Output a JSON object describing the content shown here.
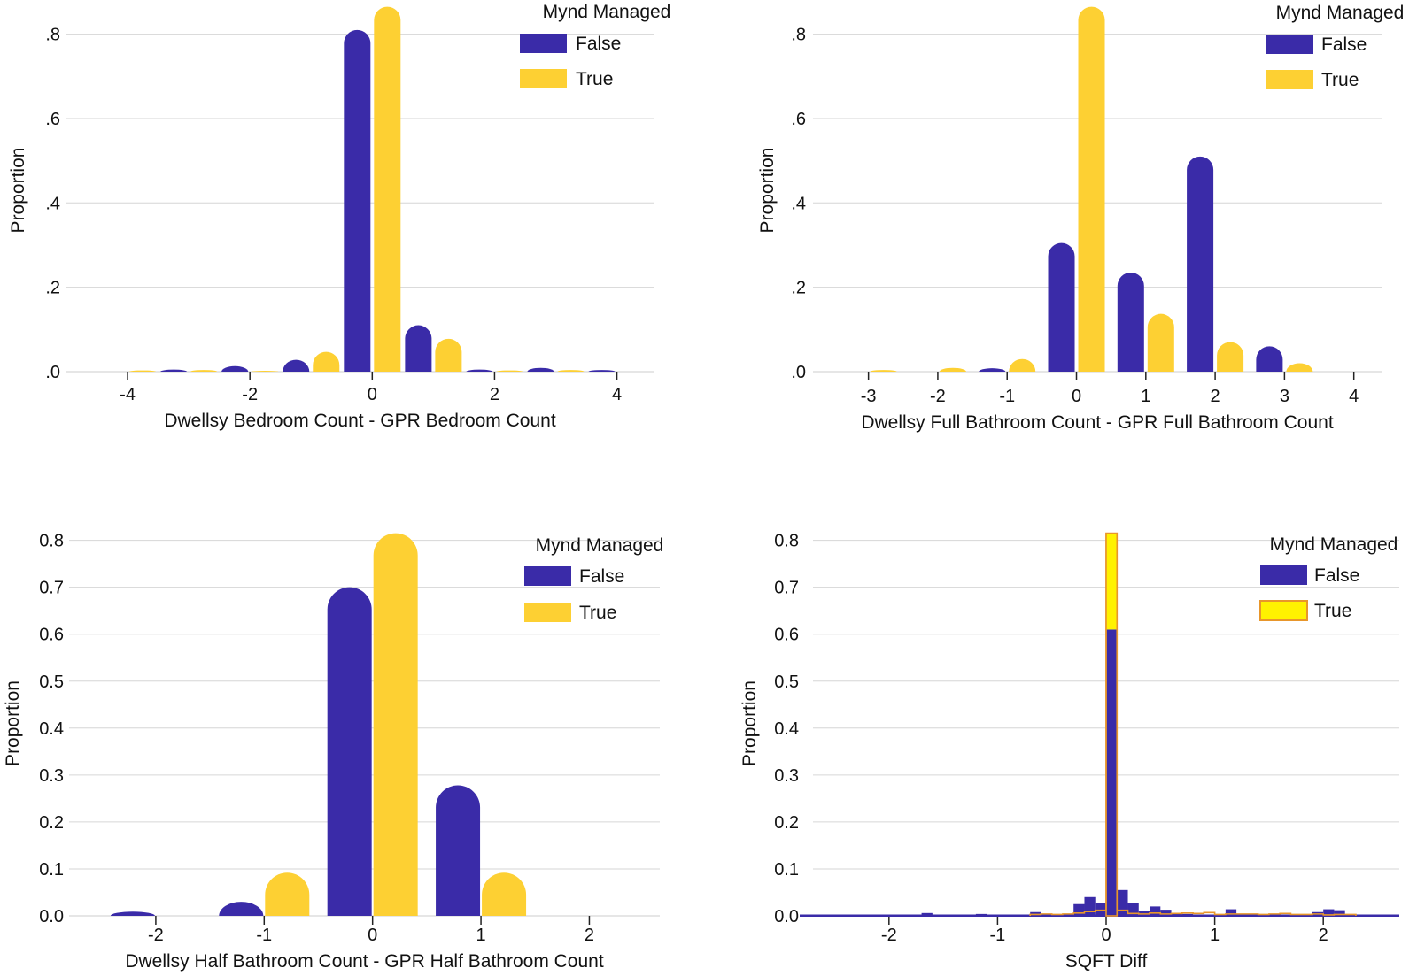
{
  "colors": {
    "false": "#3a2ba8",
    "true": "#fdd033",
    "true_hist": "#fff200",
    "true_hist_edge": "#e8962b",
    "grid": "#d6d6d6",
    "axis": "#222222"
  },
  "chart_data": [
    {
      "type": "bar",
      "panel": "top-left",
      "ylabel": "Proportion",
      "xlabel": "Dwellsy Bedroom Count - GPR Bedroom Count",
      "xlim": [
        -5,
        4.6
      ],
      "ylim": [
        0,
        0.86
      ],
      "yticks": [
        0,
        0.2,
        0.4,
        0.6,
        0.8
      ],
      "ytick_labels": [
        ".0",
        ".2",
        ".4",
        ".6",
        ".8"
      ],
      "xticks": [
        -4,
        -2,
        0,
        2,
        4
      ],
      "xtick_labels": [
        "-4",
        "-2",
        "0",
        "2",
        "4"
      ],
      "grid": true,
      "legend": {
        "title": "Mynd Managed",
        "entries": [
          "False",
          "True"
        ],
        "placement": "top-right"
      },
      "series": [
        {
          "name": "False",
          "x": [
            -4,
            -3,
            -2,
            -1,
            0,
            1,
            2,
            3,
            4
          ],
          "values": [
            0.0,
            0.005,
            0.013,
            0.028,
            0.81,
            0.11,
            0.005,
            0.009,
            0.004
          ]
        },
        {
          "name": "True",
          "x": [
            -4,
            -3,
            -2,
            -1,
            0,
            1,
            2,
            3,
            4
          ],
          "values": [
            0.003,
            0.004,
            0.002,
            0.047,
            0.865,
            0.078,
            0.003,
            0.004,
            0.0
          ]
        }
      ]
    },
    {
      "type": "bar",
      "panel": "top-right",
      "ylabel": "Proportion",
      "xlabel": "Dwellsy Full Bathroom Count - GPR Full Bathroom Count",
      "xlim": [
        -3.8,
        4.4
      ],
      "ylim": [
        0,
        0.86
      ],
      "yticks": [
        0,
        0.2,
        0.4,
        0.6,
        0.8
      ],
      "ytick_labels": [
        ".0",
        ".2",
        ".4",
        ".6",
        ".8"
      ],
      "xticks": [
        -3,
        -2,
        -1,
        0,
        1,
        2,
        3,
        4
      ],
      "xtick_labels": [
        "-3",
        "-2",
        "-1",
        "0",
        "1",
        "2",
        "3",
        "4"
      ],
      "grid": true,
      "legend": {
        "title": "Mynd Managed",
        "entries": [
          "False",
          "True"
        ],
        "placement": "top-right"
      },
      "series": [
        {
          "name": "False",
          "x": [
            -3,
            -2,
            -1,
            0,
            1,
            2,
            3
          ],
          "values": [
            0.0,
            0.0,
            0.008,
            0.305,
            0.235,
            0.51,
            0.06
          ]
        },
        {
          "name": "True",
          "x": [
            -3,
            -2,
            -1,
            0,
            1,
            2,
            3
          ],
          "values": [
            0.004,
            0.009,
            0.03,
            0.865,
            0.137,
            0.07,
            0.02
          ]
        }
      ]
    },
    {
      "type": "bar",
      "panel": "bottom-left",
      "ylabel": "Proportion",
      "xlabel": "Dwellsy Half Bathroom Count - GPR Half Bathroom Count",
      "xlim": [
        -2.8,
        2.65
      ],
      "ylim": [
        0,
        0.82
      ],
      "yticks": [
        0,
        0.1,
        0.2,
        0.3,
        0.4,
        0.5,
        0.6,
        0.7,
        0.8
      ],
      "ytick_labels": [
        "0.0",
        "0.1",
        "0.2",
        "0.3",
        "0.4",
        "0.5",
        "0.6",
        "0.7",
        "0.8"
      ],
      "xticks": [
        -2,
        -1,
        0,
        1,
        2
      ],
      "xtick_labels": [
        "-2",
        "-1",
        "0",
        "1",
        "2"
      ],
      "grid": true,
      "legend": {
        "title": "Mynd Managed",
        "entries": [
          "False",
          "True"
        ],
        "placement": "top-right"
      },
      "series": [
        {
          "name": "False",
          "x": [
            -2,
            -1,
            0,
            1
          ],
          "values": [
            0.009,
            0.03,
            0.7,
            0.278
          ]
        },
        {
          "name": "True",
          "x": [
            -2,
            -1,
            0,
            1
          ],
          "values": [
            0.0,
            0.092,
            0.815,
            0.092
          ]
        }
      ]
    },
    {
      "type": "histogram",
      "panel": "bottom-right",
      "ylabel": "Proportion",
      "xlabel": "SQFT Diff",
      "xlim": [
        -2.7,
        2.7
      ],
      "ylim": [
        0,
        0.82
      ],
      "yticks": [
        0,
        0.1,
        0.2,
        0.3,
        0.4,
        0.5,
        0.6,
        0.7,
        0.8
      ],
      "ytick_labels": [
        "0.0",
        "0.1",
        "0.2",
        "0.3",
        "0.4",
        "0.5",
        "0.6",
        "0.7",
        "0.8"
      ],
      "xticks": [
        -2,
        -1,
        0,
        1,
        2
      ],
      "xtick_labels": [
        "-2",
        "-1",
        "0",
        "1",
        "2"
      ],
      "grid": true,
      "bin_width": 0.1,
      "legend": {
        "title": "Mynd Managed",
        "entries": [
          "False",
          "True"
        ],
        "placement": "top-right"
      },
      "series": [
        {
          "name": "False",
          "bins_start": [
            -1.7,
            -1.2,
            -0.7,
            -0.3,
            -0.2,
            -0.1,
            0.0,
            0.1,
            0.2,
            0.3,
            0.4,
            0.5,
            0.6,
            0.7,
            1.1,
            1.9,
            2.0,
            2.1
          ],
          "values": [
            0.006,
            0.004,
            0.008,
            0.025,
            0.04,
            0.028,
            0.61,
            0.055,
            0.028,
            0.01,
            0.02,
            0.013,
            0.006,
            0.004,
            0.014,
            0.008,
            0.014,
            0.012
          ]
        },
        {
          "name": "True",
          "bins_start": [
            -0.7,
            -0.6,
            -0.5,
            -0.4,
            -0.3,
            -0.2,
            -0.1,
            0.0,
            0.1,
            0.2,
            0.3,
            0.4,
            0.5,
            0.6,
            0.7,
            0.8,
            0.9,
            1.0,
            1.1,
            1.2,
            1.3,
            1.4,
            1.5,
            1.6,
            1.7,
            1.8,
            1.9,
            2.0,
            2.1,
            2.2
          ],
          "values": [
            0.003,
            0.004,
            0.003,
            0.004,
            0.006,
            0.009,
            0.012,
            0.815,
            0.012,
            0.005,
            0.004,
            0.006,
            0.004,
            0.005,
            0.006,
            0.005,
            0.007,
            0.003,
            0.004,
            0.004,
            0.004,
            0.003,
            0.004,
            0.005,
            0.003,
            0.003,
            0.004,
            0.002,
            0.003,
            0.003
          ]
        }
      ]
    }
  ]
}
